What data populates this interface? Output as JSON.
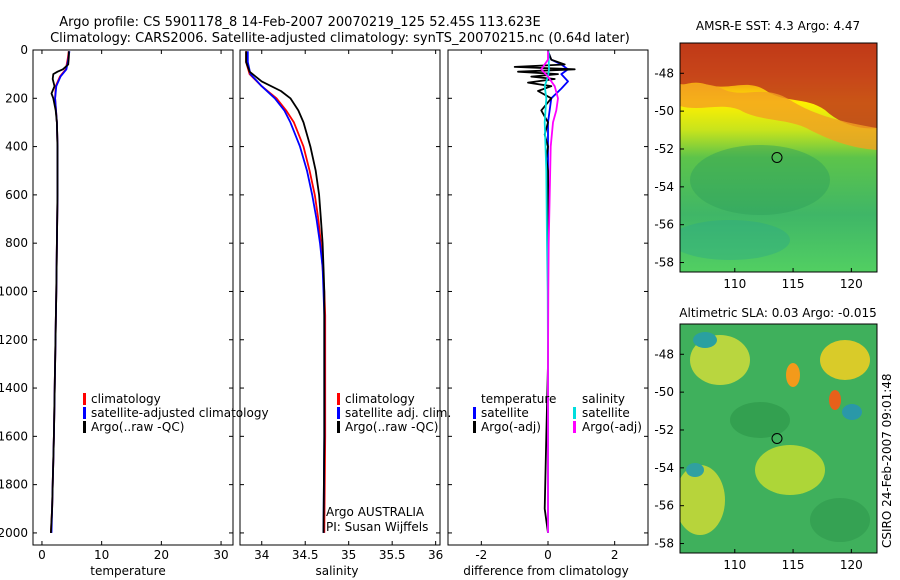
{
  "header": {
    "title_line1": "Argo profile: CS 5901178_8 14-Feb-2007 20070219_125 52.45S 113.623E",
    "title_line2": "Climatology: CARS2006. Satellite-adjusted climatology: synTS_20070215.nc (0.64d later)"
  },
  "side_label": "CSIRO 24-Feb-2007 09:01:48",
  "colors": {
    "climatology": "#ff0000",
    "satellite": "#0000ff",
    "argo": "#000000",
    "salinity_satellite": "#00dddd",
    "salinity_argo": "#ff00ff"
  },
  "chart_data": [
    {
      "type": "line",
      "id": "temperature",
      "xlabel": "temperature",
      "ylabel": "",
      "xlim": [
        -1.5,
        32
      ],
      "ylim": [
        2050,
        0
      ],
      "x_ticks": [
        0,
        10,
        20,
        30
      ],
      "x_tick_labels": [
        "0",
        "10",
        "20",
        "30"
      ],
      "y_ticks": [
        0,
        200,
        400,
        600,
        800,
        1000,
        1200,
        1400,
        1600,
        1800,
        2000
      ],
      "y_tick_labels": [
        "0",
        "200",
        "400",
        "600",
        "800",
        "1000",
        "1200",
        "1400",
        "1600",
        "1800",
        "2000"
      ],
      "legend_labels": [
        "climatology",
        "satellite-adjusted climatology",
        "Argo(..raw -QC)"
      ],
      "series": [
        {
          "name": "climatology",
          "color": "#ff0000",
          "depth": [
            5,
            40,
            80,
            110,
            150,
            200,
            300,
            400,
            600,
            800,
            1000,
            1300,
            1600,
            1900,
            2000
          ],
          "values": [
            4.5,
            4.3,
            4.0,
            3.0,
            2.3,
            2.2,
            2.5,
            2.6,
            2.6,
            2.5,
            2.4,
            2.2,
            2.0,
            1.7,
            1.5
          ]
        },
        {
          "name": "satellite-adjusted climatology",
          "color": "#0000ff",
          "depth": [
            5,
            40,
            80,
            110,
            150,
            200,
            300,
            400,
            600,
            800,
            1000,
            1300,
            1600,
            1900,
            2000
          ],
          "values": [
            4.6,
            4.4,
            4.1,
            3.1,
            2.4,
            2.2,
            2.5,
            2.6,
            2.6,
            2.5,
            2.4,
            2.2,
            2.0,
            1.7,
            1.6
          ]
        },
        {
          "name": "Argo(..raw -QC)",
          "color": "#000000",
          "depth": [
            5,
            30,
            60,
            80,
            90,
            100,
            120,
            150,
            180,
            200,
            250,
            300,
            400,
            600,
            800,
            1000,
            1300,
            1600,
            1900,
            2000
          ],
          "values": [
            4.5,
            4.5,
            4.4,
            3.5,
            2.6,
            1.9,
            1.8,
            2.1,
            1.6,
            1.9,
            2.3,
            2.5,
            2.6,
            2.6,
            2.5,
            2.4,
            2.2,
            2.0,
            1.7,
            1.5
          ]
        }
      ]
    },
    {
      "type": "line",
      "id": "salinity",
      "xlabel": "salinity",
      "ylabel": "",
      "xlim": [
        33.75,
        36.05
      ],
      "ylim": [
        2050,
        0
      ],
      "x_ticks": [
        34,
        34.5,
        35,
        35.5,
        36
      ],
      "x_tick_labels": [
        "34",
        "34.5",
        "35",
        "35.5",
        "36"
      ],
      "legend_labels": [
        "climatology",
        "satellite adj. clim.",
        "Argo(..raw -QC)"
      ],
      "annotation_lines": [
        "Argo AUSTRALIA",
        "PI: Susan Wijffels"
      ],
      "series": [
        {
          "name": "climatology",
          "color": "#ff0000",
          "depth": [
            5,
            50,
            100,
            150,
            200,
            250,
            300,
            400,
            500,
            600,
            700,
            800,
            900,
            1000,
            1100,
            1300,
            1600,
            2000
          ],
          "values": [
            33.82,
            33.82,
            33.86,
            34.0,
            34.17,
            34.28,
            34.37,
            34.48,
            34.55,
            34.61,
            34.65,
            34.68,
            34.7,
            34.72,
            34.73,
            34.73,
            34.73,
            34.72
          ]
        },
        {
          "name": "satellite adj. clim.",
          "color": "#0000ff",
          "depth": [
            5,
            50,
            100,
            150,
            200,
            250,
            300,
            400,
            500,
            600,
            700,
            800,
            900,
            1000,
            1100,
            1300,
            1600,
            2000
          ],
          "values": [
            33.84,
            33.84,
            33.87,
            34.0,
            34.15,
            34.26,
            34.33,
            34.44,
            34.52,
            34.58,
            34.63,
            34.67,
            34.7,
            34.71,
            34.72,
            34.72,
            34.72,
            34.71
          ]
        },
        {
          "name": "Argo(..raw -QC)",
          "color": "#000000",
          "depth": [
            5,
            50,
            90,
            130,
            170,
            200,
            250,
            300,
            400,
            500,
            600,
            700,
            800,
            900,
            1000,
            1100,
            1300,
            1600,
            2000
          ],
          "values": [
            33.82,
            33.82,
            33.86,
            34.0,
            34.22,
            34.33,
            34.42,
            34.48,
            34.56,
            34.62,
            34.66,
            34.68,
            34.7,
            34.71,
            34.72,
            34.72,
            34.72,
            34.72,
            34.71
          ]
        }
      ]
    },
    {
      "type": "line",
      "id": "difference",
      "xlabel": "difference from climatology",
      "ylabel": "",
      "xlim": [
        -3,
        3
      ],
      "ylim": [
        2050,
        0
      ],
      "x_ticks": [
        -2,
        0,
        2
      ],
      "x_tick_labels": [
        "-2",
        "0",
        "2"
      ],
      "legend_temperature_title": "temperature",
      "legend_salinity_title": "salinity",
      "legend_labels": [
        "satellite",
        "Argo(-adj)",
        "satellite",
        "Argo(-adj)"
      ],
      "series": [
        {
          "name": "temperature satellite",
          "color": "#0000ff",
          "depth": [
            5,
            40,
            60,
            80,
            100,
            130,
            160,
            200,
            300,
            500,
            1000,
            1500,
            2000
          ],
          "values": [
            0.0,
            0.1,
            0.4,
            0.6,
            0.4,
            0.6,
            0.4,
            0.1,
            0.0,
            0.0,
            0.0,
            0.0,
            0.0
          ]
        },
        {
          "name": "temperature Argo(-adj)",
          "color": "#000000",
          "depth": [
            5,
            40,
            60,
            70,
            80,
            90,
            100,
            110,
            120,
            135,
            150,
            170,
            200,
            250,
            300,
            350,
            400,
            450,
            500,
            600,
            800,
            1000,
            1300,
            1600,
            1900,
            2000
          ],
          "values": [
            0.0,
            0.1,
            0.5,
            -1.0,
            0.8,
            -0.9,
            0.3,
            -0.5,
            0.2,
            -0.6,
            0.1,
            -0.3,
            0.1,
            -0.2,
            0.0,
            -0.1,
            0.0,
            -0.05,
            0.0,
            0.0,
            0.0,
            0.0,
            0.0,
            -0.05,
            -0.1,
            0.0
          ]
        },
        {
          "name": "salinity satellite",
          "color": "#00dddd",
          "depth": [
            5,
            40,
            80,
            110,
            150,
            200,
            300,
            500,
            800,
            1000,
            1300,
            1600,
            2000
          ],
          "values": [
            0.02,
            0.02,
            0.03,
            0.0,
            -0.1,
            -0.05,
            -0.1,
            -0.05,
            -0.03,
            -0.01,
            0.0,
            0.0,
            0.0
          ]
        },
        {
          "name": "salinity Argo(-adj)",
          "color": "#ff00ff",
          "depth": [
            5,
            40,
            80,
            110,
            150,
            200,
            250,
            300,
            400,
            600,
            800,
            1000,
            1300,
            1600,
            2000
          ],
          "values": [
            0.0,
            0.0,
            -0.2,
            0.0,
            0.2,
            0.3,
            0.25,
            0.15,
            0.08,
            0.05,
            0.02,
            0.01,
            0.0,
            0.0,
            0.0
          ]
        }
      ]
    },
    {
      "type": "heatmap",
      "id": "sst_map",
      "title": "AMSR-E SST: 4.3 Argo: 4.47",
      "xlim": [
        105.3,
        122.2
      ],
      "ylim": [
        -58.5,
        -46.4
      ],
      "x_ticks": [
        110,
        115,
        120
      ],
      "x_tick_labels": [
        "110",
        "115",
        "120"
      ],
      "y_ticks": [
        -48,
        -50,
        -52,
        -54,
        -56,
        -58
      ],
      "y_tick_labels": [
        "-48",
        "-50",
        "-52",
        "-54",
        "-56",
        "-58"
      ],
      "marker": {
        "lon": 113.623,
        "lat": -52.45
      }
    },
    {
      "type": "heatmap",
      "id": "sla_map",
      "title": "Altimetric SLA: 0.03 Argo: -0.015",
      "xlim": [
        105.3,
        122.2
      ],
      "ylim": [
        -58.5,
        -46.4
      ],
      "x_ticks": [
        110,
        115,
        120
      ],
      "x_tick_labels": [
        "110",
        "115",
        "120"
      ],
      "y_ticks": [
        -48,
        -50,
        -52,
        -54,
        -56,
        -58
      ],
      "y_tick_labels": [
        "-48",
        "-50",
        "-52",
        "-54",
        "-56",
        "-58"
      ],
      "marker": {
        "lon": 113.623,
        "lat": -52.45
      }
    }
  ]
}
